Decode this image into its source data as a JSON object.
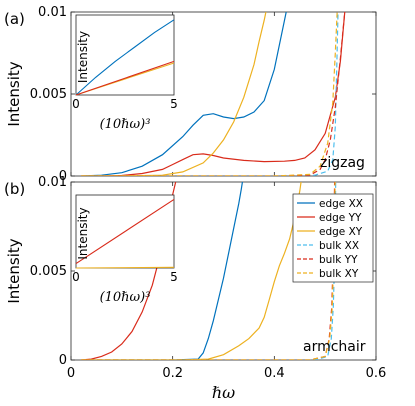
{
  "x_axis_label": "ℏω",
  "chart_data": [
    {
      "type": "line",
      "panel_label": "(a)",
      "annotation": "zigzag",
      "ylabel": "Intensity",
      "xlim": [
        0,
        0.6
      ],
      "ylim": [
        0,
        0.01
      ],
      "x_ticks": [
        "0",
        "0.2",
        "0.4",
        "0.6"
      ],
      "y_ticks": [
        "0",
        "0.005",
        "0.01"
      ],
      "series": [
        {
          "key": "edge_xx",
          "color": "#0072bd",
          "dash": false,
          "x": [
            0.02,
            0.06,
            0.1,
            0.14,
            0.18,
            0.22,
            0.24,
            0.26,
            0.28,
            0.3,
            0.32,
            0.34,
            0.36,
            0.38,
            0.4,
            0.42,
            0.44
          ],
          "y": [
            0,
            5e-05,
            0.0002,
            0.0006,
            0.0013,
            0.0024,
            0.0031,
            0.0037,
            0.0038,
            0.0036,
            0.0035,
            0.0036,
            0.0039,
            0.0046,
            0.0065,
            0.0095,
            0.0125
          ]
        },
        {
          "key": "edge_yy",
          "color": "#d92b1b",
          "dash": false,
          "x": [
            0.02,
            0.06,
            0.1,
            0.14,
            0.18,
            0.2,
            0.22,
            0.24,
            0.26,
            0.28,
            0.3,
            0.34,
            0.38,
            0.42,
            0.44,
            0.46,
            0.48,
            0.5,
            0.52,
            0.53,
            0.54
          ],
          "y": [
            0,
            0,
            3e-05,
            0.00015,
            0.0004,
            0.0007,
            0.001,
            0.0013,
            0.00135,
            0.00125,
            0.0011,
            0.00095,
            0.00088,
            0.0009,
            0.00095,
            0.0011,
            0.0016,
            0.0026,
            0.0048,
            0.007,
            0.0105
          ]
        },
        {
          "key": "edge_xy",
          "color": "#edb120",
          "dash": false,
          "x": [
            0.02,
            0.1,
            0.18,
            0.22,
            0.26,
            0.28,
            0.3,
            0.32,
            0.34,
            0.36,
            0.37,
            0.38,
            0.39
          ],
          "y": [
            0,
            0,
            5e-05,
            0.00025,
            0.0008,
            0.0014,
            0.0022,
            0.0033,
            0.0048,
            0.0068,
            0.0082,
            0.0095,
            0.011
          ]
        },
        {
          "key": "bulk_xx",
          "color": "#4dbeee",
          "dash": true,
          "x": [
            0.02,
            0.4,
            0.48,
            0.505,
            0.515,
            0.52,
            0.523,
            0.526
          ],
          "y": [
            0,
            0,
            5e-05,
            0.0003,
            0.001,
            0.003,
            0.007,
            0.011
          ]
        },
        {
          "key": "bulk_yy",
          "color": "#d92b1b",
          "dash": true,
          "x": [
            0.02,
            0.4,
            0.47,
            0.49,
            0.5,
            0.51,
            0.52,
            0.53,
            0.54
          ],
          "y": [
            0,
            0,
            5e-05,
            0.0004,
            0.001,
            0.0022,
            0.0042,
            0.0072,
            0.0105
          ]
        },
        {
          "key": "bulk_xy",
          "color": "#edb120",
          "dash": true,
          "x": [
            0.02,
            0.4,
            0.47,
            0.49,
            0.505,
            0.515,
            0.52,
            0.525
          ],
          "y": [
            0,
            0,
            0.0001,
            0.0006,
            0.002,
            0.0045,
            0.0075,
            0.011
          ]
        }
      ],
      "inset": {
        "ylabel": "Intensity",
        "xlabel": "(10ℏω)³",
        "xlim": [
          0,
          5
        ],
        "x_ticks": [
          "0",
          "5"
        ],
        "series": [
          {
            "color": "#0072bd",
            "x": [
              0,
              1,
              2,
              3,
              4,
              5
            ],
            "y": [
              0,
              0.22,
              0.42,
              0.6,
              0.78,
              0.94
            ]
          },
          {
            "color": "#edb120",
            "x": [
              0,
              5
            ],
            "y": [
              0,
              0.4
            ]
          },
          {
            "color": "#d92b1b",
            "x": [
              0,
              5
            ],
            "y": [
              0,
              0.42
            ]
          }
        ]
      }
    },
    {
      "type": "line",
      "panel_label": "(b)",
      "annotation": "armchair",
      "ylabel": "Intensity",
      "xlim": [
        0,
        0.6
      ],
      "ylim": [
        0,
        0.01
      ],
      "x_ticks": [
        "0",
        "0.2",
        "0.4",
        "0.6"
      ],
      "y_ticks": [
        "0",
        "0.005",
        "0.01"
      ],
      "legend": {
        "position": "top-right",
        "entries": [
          {
            "label": "edge XX",
            "color": "#0072bd",
            "dash": false
          },
          {
            "label": "edge YY",
            "color": "#d92b1b",
            "dash": false
          },
          {
            "label": "edge XY",
            "color": "#edb120",
            "dash": false
          },
          {
            "label": "bulk XX",
            "color": "#4dbeee",
            "dash": true
          },
          {
            "label": "bulk YY",
            "color": "#d92b1b",
            "dash": true
          },
          {
            "label": "bulk XY",
            "color": "#edb120",
            "dash": true
          }
        ]
      },
      "series": [
        {
          "key": "edge_xx",
          "color": "#0072bd",
          "dash": false,
          "x": [
            0.02,
            0.2,
            0.25,
            0.26,
            0.27,
            0.28,
            0.29,
            0.3,
            0.31,
            0.32,
            0.33,
            0.335,
            0.34
          ],
          "y": [
            0,
            0,
            5e-05,
            0.0004,
            0.0012,
            0.0022,
            0.0034,
            0.0046,
            0.006,
            0.0074,
            0.0088,
            0.0096,
            0.0105
          ]
        },
        {
          "key": "edge_yy",
          "color": "#d92b1b",
          "dash": false,
          "x": [
            0.02,
            0.04,
            0.06,
            0.08,
            0.1,
            0.12,
            0.14,
            0.16,
            0.18,
            0.19,
            0.2,
            0.21
          ],
          "y": [
            0,
            5e-05,
            0.0002,
            0.00045,
            0.0009,
            0.0016,
            0.0027,
            0.0042,
            0.0064,
            0.0078,
            0.0093,
            0.0105
          ]
        },
        {
          "key": "edge_xy",
          "color": "#edb120",
          "dash": false,
          "x": [
            0.02,
            0.22,
            0.27,
            0.3,
            0.33,
            0.35,
            0.37,
            0.38,
            0.39,
            0.4,
            0.41,
            0.42,
            0.43,
            0.44,
            0.45,
            0.455
          ],
          "y": [
            0,
            0,
            5e-05,
            0.0003,
            0.0008,
            0.0012,
            0.0018,
            0.0024,
            0.0034,
            0.0044,
            0.0053,
            0.006,
            0.0068,
            0.008,
            0.0095,
            0.0105
          ]
        },
        {
          "key": "bulk_xx",
          "color": "#4dbeee",
          "dash": true,
          "x": [
            0.02,
            0.48,
            0.505,
            0.512,
            0.516,
            0.519,
            0.521
          ],
          "y": [
            0,
            0,
            0.0002,
            0.0012,
            0.003,
            0.006,
            0.0105
          ]
        },
        {
          "key": "bulk_yy",
          "color": "#d92b1b",
          "dash": true,
          "x": [
            0.02,
            0.47,
            0.5,
            0.508,
            0.513,
            0.516,
            0.519
          ],
          "y": [
            0,
            0,
            0.0002,
            0.0012,
            0.003,
            0.006,
            0.0105
          ]
        },
        {
          "key": "bulk_xy",
          "color": "#edb120",
          "dash": true,
          "x": [
            0.02,
            0.47,
            0.5,
            0.509,
            0.514,
            0.517,
            0.52
          ],
          "y": [
            0,
            0,
            0.0002,
            0.0012,
            0.003,
            0.006,
            0.0105
          ]
        }
      ],
      "inset": {
        "ylabel": "Intensity",
        "xlabel": "(10ℏω)³",
        "xlim": [
          0,
          5
        ],
        "x_ticks": [
          "0",
          "5"
        ],
        "series": [
          {
            "color": "#edb120",
            "x": [
              0,
              5
            ],
            "y": [
              0,
              0.01
            ]
          },
          {
            "color": "#d92b1b",
            "x": [
              0,
              5
            ],
            "y": [
              0.06,
              0.94
            ]
          }
        ]
      }
    }
  ]
}
